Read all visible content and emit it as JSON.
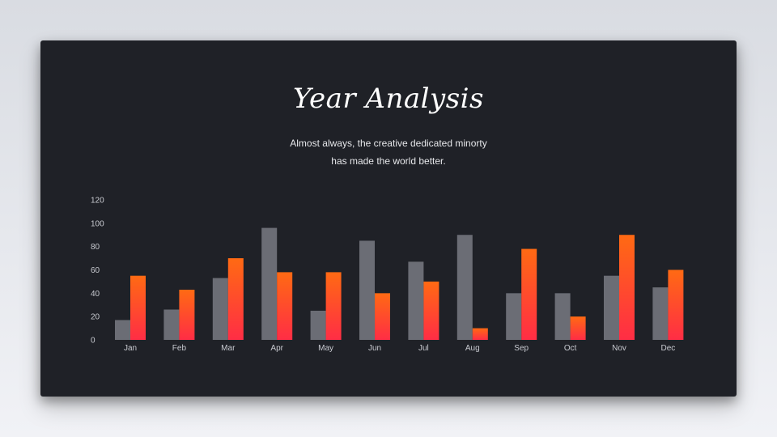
{
  "slide": {
    "title": "Year Analysis",
    "subtitle_lines": [
      "Almost always, the creative dedicated minorty",
      "has made the world better."
    ]
  },
  "colors": {
    "background": "#1f2127",
    "series_gray": "#6b6d75",
    "series_orange_top": "#ff6a13",
    "series_orange_bottom": "#ff2d45",
    "text": "#ffffff",
    "axis_text": "#c9cbd1"
  },
  "chart_data": {
    "type": "bar",
    "categories": [
      "Jan",
      "Feb",
      "Mar",
      "Apr",
      "May",
      "Jun",
      "Jul",
      "Aug",
      "Sep",
      "Oct",
      "Nov",
      "Dec"
    ],
    "series": [
      {
        "color": "#6b6d75",
        "values": [
          17,
          26,
          53,
          96,
          25,
          85,
          67,
          90,
          40,
          40,
          55,
          45
        ]
      },
      {
        "color": "gradient-orange-red",
        "values": [
          55,
          43,
          70,
          58,
          58,
          40,
          50,
          10,
          78,
          20,
          90,
          60
        ]
      }
    ],
    "yticks": [
      0,
      20,
      40,
      60,
      80,
      100,
      120
    ],
    "ylim": [
      0,
      120
    ],
    "title": "",
    "xlabel": "",
    "ylabel": "",
    "grid": false,
    "legend": "none"
  }
}
